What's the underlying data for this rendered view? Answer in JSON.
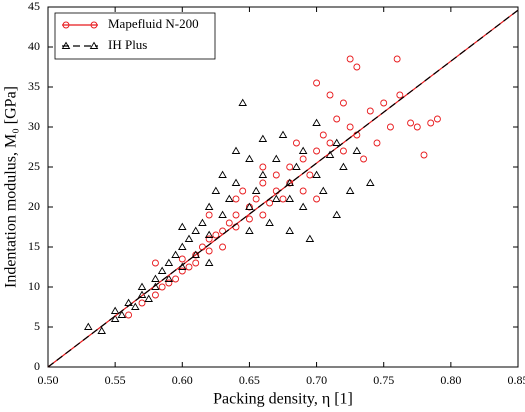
{
  "chart_data": {
    "type": "scatter",
    "xlabel": "Packing density, η [1]",
    "ylabel": "Indentation modulus, M₀ [GPa]",
    "xlim": [
      0.5,
      0.85
    ],
    "ylim": [
      0,
      45
    ],
    "xticks": [
      {
        "value": 0.5,
        "label": "0.50"
      },
      0.55,
      {
        "value": 0.6,
        "label": "0.60"
      },
      0.65,
      {
        "value": 0.7,
        "label": "0.70"
      },
      0.75,
      {
        "value": 0.8,
        "label": "0.80"
      },
      0.85
    ],
    "yticks": [
      0,
      5,
      10,
      15,
      20,
      25,
      30,
      35,
      40,
      45
    ],
    "legend": "upper left",
    "series": [
      {
        "name": "Mapefluid N-200",
        "color": "#e8191c",
        "marker": "circle",
        "line": "solid",
        "x": [
          0.56,
          0.57,
          0.58,
          0.585,
          0.59,
          0.595,
          0.6,
          0.6,
          0.605,
          0.61,
          0.61,
          0.615,
          0.62,
          0.62,
          0.625,
          0.63,
          0.63,
          0.635,
          0.64,
          0.64,
          0.645,
          0.65,
          0.65,
          0.655,
          0.66,
          0.66,
          0.665,
          0.67,
          0.67,
          0.675,
          0.68,
          0.68,
          0.685,
          0.69,
          0.69,
          0.695,
          0.7,
          0.7,
          0.705,
          0.71,
          0.71,
          0.715,
          0.72,
          0.72,
          0.725,
          0.725,
          0.73,
          0.73,
          0.735,
          0.74,
          0.745,
          0.75,
          0.755,
          0.76,
          0.762,
          0.77,
          0.775,
          0.785,
          0.79,
          0.78,
          0.64,
          0.66,
          0.58,
          0.62,
          0.7
        ],
        "values": [
          6.5,
          8,
          9,
          10,
          10.5,
          11,
          12,
          13.5,
          12.5,
          14,
          13,
          15,
          14.5,
          16,
          16.5,
          15,
          17,
          18,
          17.5,
          19,
          22,
          18.5,
          20,
          21,
          19,
          23,
          20.5,
          22,
          24,
          21,
          25,
          23,
          28,
          22,
          26,
          24,
          27,
          35.5,
          29,
          34,
          28,
          31,
          33,
          27,
          38.5,
          30,
          37.5,
          29,
          26,
          32,
          28,
          33,
          30,
          38.5,
          34,
          30.5,
          30,
          30.5,
          31,
          26.5,
          21,
          25,
          13,
          19,
          21
        ],
        "fit": {
          "x": [
            0.5,
            0.85
          ],
          "values": [
            0,
            44.6
          ]
        }
      },
      {
        "name": "IH Plus",
        "color": "#000000",
        "marker": "triangle",
        "line": "dashed",
        "x": [
          0.53,
          0.54,
          0.55,
          0.555,
          0.56,
          0.565,
          0.57,
          0.575,
          0.58,
          0.58,
          0.585,
          0.59,
          0.59,
          0.595,
          0.6,
          0.6,
          0.605,
          0.61,
          0.61,
          0.615,
          0.62,
          0.62,
          0.625,
          0.63,
          0.63,
          0.635,
          0.64,
          0.64,
          0.645,
          0.65,
          0.65,
          0.655,
          0.66,
          0.66,
          0.665,
          0.67,
          0.67,
          0.675,
          0.68,
          0.68,
          0.685,
          0.69,
          0.69,
          0.695,
          0.7,
          0.7,
          0.705,
          0.71,
          0.715,
          0.72,
          0.725,
          0.73,
          0.74,
          0.6,
          0.57,
          0.55,
          0.62,
          0.68,
          0.65,
          0.715
        ],
        "values": [
          5,
          4.5,
          6,
          6.5,
          8,
          7.5,
          9,
          8.5,
          10,
          11,
          12,
          11,
          13,
          14,
          12.5,
          15,
          16,
          17,
          14,
          18,
          16.5,
          20,
          22,
          19,
          24,
          21,
          23,
          27,
          33,
          20,
          26,
          22,
          24,
          28.5,
          18,
          26,
          21,
          29,
          23,
          17,
          25,
          20,
          27,
          16,
          24,
          30.5,
          22,
          26.5,
          19,
          25,
          22,
          27,
          23,
          17.5,
          10,
          7,
          13,
          21,
          17,
          28
        ],
        "fit": {
          "x": [
            0.5,
            0.85
          ],
          "values": [
            0,
            44.6
          ]
        }
      }
    ]
  }
}
